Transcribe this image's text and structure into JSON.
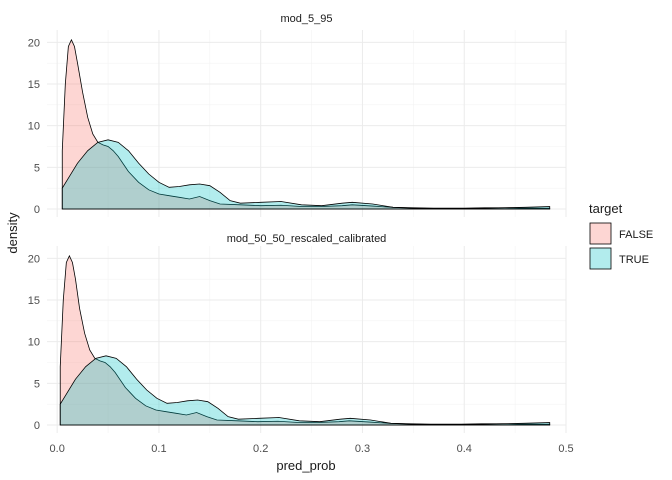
{
  "chart_data": {
    "type": "area",
    "xlabel": "pred_prob",
    "ylabel": "density",
    "xlim": [
      -0.01,
      0.5
    ],
    "ylim": [
      0,
      21
    ],
    "x_ticks": [
      0.0,
      0.1,
      0.2,
      0.3,
      0.4,
      0.5
    ],
    "x_tick_labels": [
      "0.0",
      "0.1",
      "0.2",
      "0.3",
      "0.4",
      "0.5"
    ],
    "y_ticks": [
      0,
      5,
      10,
      15,
      20
    ],
    "y_tick_labels": [
      "0",
      "5",
      "10",
      "15",
      "20"
    ],
    "grid": true,
    "legend": {
      "title": "target",
      "placement": "right",
      "entries": [
        {
          "label": "FALSE",
          "color": "#F8766D"
        },
        {
          "label": "TRUE",
          "color": "#00BFC4"
        }
      ]
    },
    "panels": [
      {
        "strip_label": "mod_5_95",
        "series": [
          {
            "name": "FALSE",
            "color": "#F8766D",
            "x": [
              0.005,
              0.008,
              0.011,
              0.014,
              0.017,
              0.02,
              0.025,
              0.03,
              0.035,
              0.04,
              0.045,
              0.05,
              0.055,
              0.06,
              0.07,
              0.08,
              0.09,
              0.1,
              0.11,
              0.12,
              0.13,
              0.14,
              0.15,
              0.16,
              0.18,
              0.2,
              0.22,
              0.24,
              0.26,
              0.28,
              0.29,
              0.31,
              0.33,
              0.35,
              0.37,
              0.4,
              0.42,
              0.44,
              0.46,
              0.484
            ],
            "y": [
              7,
              15,
              19.5,
              20.3,
              19.5,
              17.5,
              14,
              11,
              9,
              8,
              7.7,
              7.5,
              7,
              6.3,
              4.5,
              3.2,
              2.3,
              1.8,
              1.6,
              1.4,
              1.2,
              1.5,
              1.0,
              0.6,
              0.5,
              0.4,
              0.45,
              0.3,
              0.3,
              0.4,
              0.5,
              0.35,
              0.2,
              0.15,
              0.1,
              0.1,
              0.15,
              0.15,
              0.1,
              0.1
            ]
          },
          {
            "name": "TRUE",
            "color": "#00BFC4",
            "x": [
              0.005,
              0.01,
              0.02,
              0.03,
              0.04,
              0.05,
              0.06,
              0.07,
              0.08,
              0.09,
              0.1,
              0.11,
              0.12,
              0.13,
              0.14,
              0.15,
              0.16,
              0.17,
              0.18,
              0.2,
              0.22,
              0.24,
              0.26,
              0.28,
              0.29,
              0.31,
              0.33,
              0.35,
              0.37,
              0.4,
              0.42,
              0.44,
              0.46,
              0.484
            ],
            "y": [
              2.5,
              3.5,
              5.5,
              7,
              8,
              8.3,
              8,
              7,
              5.5,
              4.2,
              3.2,
              2.6,
              2.7,
              2.9,
              3.0,
              2.8,
              2.0,
              1.0,
              0.7,
              0.8,
              0.9,
              0.5,
              0.4,
              0.7,
              0.8,
              0.6,
              0.2,
              0.1,
              0.05,
              0.05,
              0.1,
              0.15,
              0.2,
              0.3
            ]
          }
        ]
      },
      {
        "strip_label": "mod_50_50_rescaled_calibrated",
        "series": [
          {
            "name": "FALSE",
            "color": "#F8766D",
            "x": [
              0.003,
              0.006,
              0.009,
              0.012,
              0.015,
              0.018,
              0.022,
              0.027,
              0.032,
              0.037,
              0.042,
              0.047,
              0.052,
              0.057,
              0.067,
              0.077,
              0.087,
              0.097,
              0.107,
              0.117,
              0.127,
              0.137,
              0.147,
              0.157,
              0.177,
              0.197,
              0.217,
              0.237,
              0.257,
              0.277,
              0.287,
              0.307,
              0.327,
              0.347,
              0.367,
              0.397,
              0.417,
              0.437,
              0.457,
              0.484
            ],
            "y": [
              7,
              15,
              19.5,
              20.3,
              19.5,
              17.5,
              14,
              11,
              9,
              8,
              7.7,
              7.5,
              7,
              6.3,
              4.5,
              3.2,
              2.3,
              1.8,
              1.6,
              1.4,
              1.2,
              1.5,
              1.0,
              0.6,
              0.5,
              0.4,
              0.45,
              0.3,
              0.3,
              0.4,
              0.5,
              0.35,
              0.2,
              0.15,
              0.1,
              0.1,
              0.15,
              0.15,
              0.1,
              0.1
            ]
          },
          {
            "name": "TRUE",
            "color": "#00BFC4",
            "x": [
              0.003,
              0.008,
              0.018,
              0.028,
              0.038,
              0.048,
              0.058,
              0.068,
              0.078,
              0.088,
              0.098,
              0.108,
              0.118,
              0.128,
              0.138,
              0.148,
              0.158,
              0.168,
              0.178,
              0.198,
              0.218,
              0.238,
              0.258,
              0.278,
              0.288,
              0.308,
              0.328,
              0.348,
              0.368,
              0.398,
              0.418,
              0.438,
              0.458,
              0.484
            ],
            "y": [
              2.5,
              3.5,
              5.5,
              7,
              8,
              8.3,
              8,
              7,
              5.5,
              4.2,
              3.2,
              2.6,
              2.7,
              2.9,
              3.0,
              2.8,
              2.0,
              1.0,
              0.7,
              0.8,
              0.9,
              0.5,
              0.4,
              0.7,
              0.8,
              0.6,
              0.2,
              0.1,
              0.05,
              0.05,
              0.1,
              0.15,
              0.2,
              0.3
            ]
          }
        ]
      }
    ]
  }
}
